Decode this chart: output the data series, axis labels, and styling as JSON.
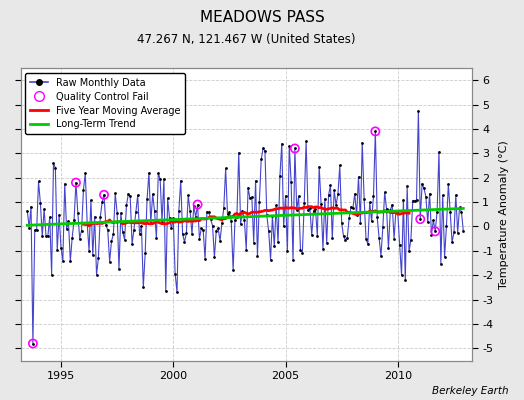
{
  "title": "MEADOWS PASS",
  "subtitle": "47.267 N, 121.467 W (United States)",
  "ylabel": "Temperature Anomaly (°C)",
  "credit": "Berkeley Earth",
  "ylim": [
    -5.5,
    6.5
  ],
  "xlim": [
    1993.2,
    2013.3
  ],
  "xticks": [
    1995,
    2000,
    2005,
    2010
  ],
  "yticks": [
    -5,
    -4,
    -3,
    -2,
    -1,
    0,
    1,
    2,
    3,
    4,
    5,
    6
  ],
  "fig_bg": "#e8e8e8",
  "plot_bg": "#ffffff",
  "raw_color": "#4444cc",
  "dot_color": "#000000",
  "qc_color": "#ff00ff",
  "ma_color": "#ff0000",
  "trend_color": "#00cc00",
  "grid_color": "#cccccc",
  "seed": 42,
  "n_months": 234,
  "start_year": 1993.5
}
